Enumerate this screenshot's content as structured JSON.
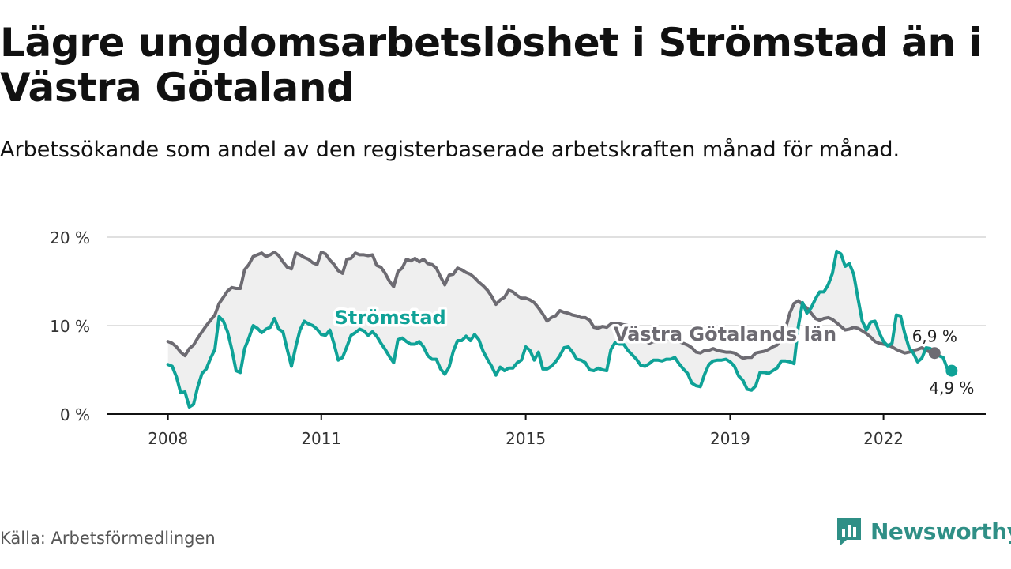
{
  "header": {
    "title": "Lägre ungdomsarbetslöshet i Strömstad än i Västra Götaland",
    "subtitle": "Arbetssökande som andel av den registerbaserade arbetskraften månad för månad."
  },
  "footer": {
    "source": "Källa: Arbetsförmedlingen",
    "brand": "Newsworthy",
    "brand_icon": "bar-chart-icon"
  },
  "colors": {
    "region": "#6d6b72",
    "municipality": "#0fa297",
    "gap_fill": "#efefef",
    "grid": "#d6d6d6",
    "axis": "#111111",
    "brand": "#2f8f86"
  },
  "chart_data": {
    "type": "line",
    "x_unit": "year (decimal, monthly observations)",
    "x_start": 2008.0,
    "x_step": 0.083333,
    "xlim": [
      2006.8,
      2024.0
    ],
    "ylim": [
      0,
      20
    ],
    "yticks": [
      {
        "value": 0,
        "label": "0 %"
      },
      {
        "value": 10,
        "label": "10 %"
      },
      {
        "value": 20,
        "label": "20 %"
      }
    ],
    "xticks": [
      {
        "value": 2008,
        "label": "2008"
      },
      {
        "value": 2011,
        "label": "2011"
      },
      {
        "value": 2015,
        "label": "2015"
      },
      {
        "value": 2019,
        "label": "2019"
      },
      {
        "value": 2022,
        "label": "2022"
      }
    ],
    "grid": "horizontal",
    "fill_between_series": true,
    "series": [
      {
        "name": "Västra Götalands län",
        "color": "#6d6b72",
        "label_value": "6,9 %",
        "values": [
          8.2,
          8.0,
          7.6,
          7.0,
          6.6,
          7.4,
          7.8,
          8.6,
          9.3,
          10.0,
          10.6,
          11.2,
          12.5,
          13.2,
          13.9,
          14.3,
          14.2,
          14.2,
          16.3,
          16.9,
          17.8,
          18.0,
          18.2,
          17.8,
          18.0,
          18.3,
          17.9,
          17.2,
          16.6,
          16.4,
          18.2,
          18.0,
          17.7,
          17.5,
          17.1,
          16.9,
          18.3,
          18.1,
          17.4,
          16.9,
          16.2,
          15.9,
          17.5,
          17.6,
          18.2,
          18.0,
          18.0,
          17.9,
          18.0,
          16.8,
          16.6,
          15.9,
          15.0,
          14.4,
          16.1,
          16.5,
          17.5,
          17.3,
          17.6,
          17.2,
          17.5,
          17.0,
          16.9,
          16.5,
          15.5,
          14.6,
          15.7,
          15.8,
          16.5,
          16.3,
          16.0,
          15.8,
          15.4,
          14.9,
          14.5,
          14.0,
          13.3,
          12.4,
          12.9,
          13.2,
          14.0,
          13.8,
          13.4,
          13.1,
          13.1,
          12.9,
          12.6,
          12.0,
          11.3,
          10.5,
          10.9,
          11.1,
          11.7,
          11.5,
          11.4,
          11.2,
          11.1,
          10.9,
          10.9,
          10.6,
          9.8,
          9.7,
          9.9,
          9.8,
          10.2,
          10.2,
          10.2,
          10.1,
          10.0,
          9.7,
          9.5,
          9.1,
          8.3,
          8.0,
          8.2,
          8.2,
          8.4,
          8.4,
          8.5,
          8.4,
          8.2,
          8.0,
          7.8,
          7.5,
          7.0,
          6.9,
          7.2,
          7.2,
          7.4,
          7.2,
          7.1,
          7.0,
          7.0,
          6.9,
          6.6,
          6.3,
          6.4,
          6.4,
          6.9,
          7.0,
          7.1,
          7.3,
          7.6,
          7.8,
          8.5,
          9.7,
          11.4,
          12.5,
          12.8,
          12.4,
          12.0,
          11.4,
          10.8,
          10.6,
          10.8,
          10.9,
          10.7,
          10.3,
          9.9,
          9.5,
          9.6,
          9.8,
          9.7,
          9.4,
          9.1,
          8.7,
          8.2,
          8.0,
          7.9,
          7.8,
          7.6,
          7.3,
          7.1,
          6.9,
          7.0,
          7.2,
          7.3,
          7.5,
          7.2,
          7.0,
          6.9
        ]
      },
      {
        "name": "Strömstad",
        "color": "#0fa297",
        "label_value": "4,9 %",
        "values": [
          5.6,
          5.4,
          4.2,
          2.4,
          2.5,
          0.8,
          1.1,
          3.1,
          4.6,
          5.1,
          6.3,
          7.3,
          11.0,
          10.5,
          9.3,
          7.3,
          4.9,
          4.7,
          7.4,
          8.6,
          10.0,
          9.7,
          9.2,
          9.6,
          9.8,
          10.8,
          9.6,
          9.3,
          7.3,
          5.4,
          7.6,
          9.5,
          10.5,
          10.2,
          10.0,
          9.6,
          9.0,
          8.9,
          9.5,
          7.9,
          6.1,
          6.4,
          7.6,
          8.9,
          9.2,
          9.6,
          9.4,
          8.9,
          9.3,
          8.8,
          8.0,
          7.3,
          6.5,
          5.8,
          8.4,
          8.6,
          8.2,
          7.9,
          7.9,
          8.2,
          7.6,
          6.6,
          6.2,
          6.2,
          5.1,
          4.5,
          5.3,
          7.1,
          8.3,
          8.3,
          8.8,
          8.3,
          9.0,
          8.4,
          7.1,
          6.2,
          5.4,
          4.4,
          5.3,
          4.9,
          5.2,
          5.2,
          5.8,
          6.1,
          7.6,
          7.2,
          6.1,
          7.0,
          5.1,
          5.1,
          5.4,
          5.9,
          6.6,
          7.5,
          7.6,
          7.0,
          6.2,
          6.1,
          5.8,
          5.0,
          4.9,
          5.2,
          5.0,
          4.9,
          7.3,
          8.1,
          7.9,
          7.9,
          7.2,
          6.7,
          6.2,
          5.5,
          5.4,
          5.7,
          6.1,
          6.1,
          6.0,
          6.2,
          6.2,
          6.4,
          5.7,
          5.1,
          4.6,
          3.5,
          3.2,
          3.1,
          4.5,
          5.6,
          6.0,
          6.1,
          6.1,
          6.2,
          5.9,
          5.4,
          4.3,
          3.8,
          2.8,
          2.7,
          3.2,
          4.7,
          4.7,
          4.6,
          4.9,
          5.2,
          6.0,
          6.0,
          5.9,
          5.7,
          9.9,
          12.6,
          11.4,
          12.0,
          13.0,
          13.8,
          13.8,
          14.6,
          15.9,
          18.4,
          18.1,
          16.7,
          17.0,
          15.8,
          13.1,
          10.5,
          9.5,
          10.4,
          10.5,
          9.2,
          8.2,
          7.7,
          8.0,
          11.2,
          11.1,
          9.1,
          7.5,
          6.9,
          5.9,
          6.3,
          7.5,
          7.4,
          7.0,
          6.6,
          6.4,
          5.1,
          4.9
        ]
      }
    ],
    "annotations": [
      {
        "text": "Strömstad",
        "series": "Strömstad",
        "x": 2012.35,
        "y": 10.2
      },
      {
        "text": "Västra Götalands län",
        "series": "Västra Götalands län",
        "x": 2018.9,
        "y": 8.3
      }
    ]
  }
}
